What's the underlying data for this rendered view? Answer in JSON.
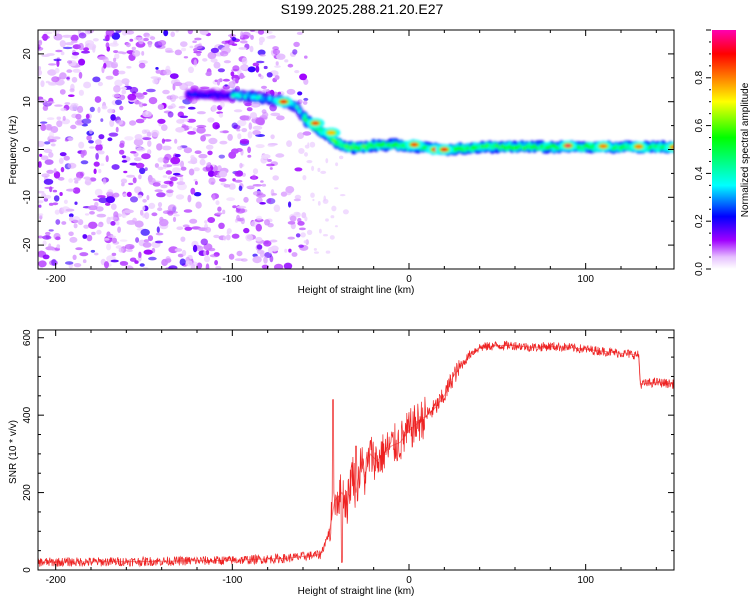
{
  "title": "S199.2025.288.21.20.E27",
  "chart_data": [
    {
      "type": "heatmap",
      "name": "spectrogram",
      "xlabel": "Height of straight line (km)",
      "ylabel": "Frequency (Hz)",
      "xlim": [
        -210,
        150
      ],
      "ylim": [
        -25,
        25
      ],
      "xticks": [
        -200,
        -100,
        0,
        100
      ],
      "yticks": [
        -20,
        -10,
        0,
        10,
        20
      ],
      "colorbar": {
        "label": "Normalized spectral amplitude",
        "range": [
          0,
          1
        ],
        "ticks": [
          "0.0",
          "0.2",
          "0.4",
          "0.6",
          "0.8"
        ],
        "tick_values": [
          0.0,
          0.2,
          0.4,
          0.6,
          0.8
        ],
        "colors": [
          "#ffffff",
          "#e0b0ff",
          "#a000ff",
          "#0000ff",
          "#00ffff",
          "#00ff00",
          "#ffff00",
          "#ff8000",
          "#ff0000",
          "#ff00b0"
        ]
      },
      "noise_region_x": [
        -210,
        -57
      ],
      "ridge": {
        "x": [
          -210,
          -120,
          -90,
          -80,
          -70,
          -64,
          -58,
          -52,
          -46,
          -40,
          -34,
          -28,
          -20,
          -10,
          0,
          20,
          40,
          60,
          80,
          100,
          120,
          150
        ],
        "freq": [
          11.5,
          11.5,
          11.2,
          10.5,
          10,
          9,
          6,
          4.5,
          3,
          1.2,
          0.5,
          0.3,
          0.8,
          1,
          0.8,
          0,
          0.5,
          0.6,
          0.5,
          0.6,
          0.5,
          0.5
        ]
      },
      "hotspots": [
        {
          "x": -71,
          "freq": 10,
          "amp": 0.9
        },
        {
          "x": -53,
          "freq": 5.5,
          "amp": 0.85
        },
        {
          "x": -44,
          "freq": 3.5,
          "amp": 0.75
        },
        {
          "x": 3,
          "freq": 1,
          "amp": 0.85
        },
        {
          "x": 15,
          "freq": 0,
          "amp": 0.9
        },
        {
          "x": 20,
          "freq": 0,
          "amp": 0.9
        },
        {
          "x": 90,
          "freq": 0.8,
          "amp": 0.95
        },
        {
          "x": 110,
          "freq": 0.7,
          "amp": 0.8
        },
        {
          "x": 130,
          "freq": 0.6,
          "amp": 0.8
        },
        {
          "x": 150,
          "freq": 0.5,
          "amp": 0.8
        }
      ]
    },
    {
      "type": "line",
      "name": "snr",
      "xlabel": "Height of straight line (km)",
      "ylabel": "SNR (10 * v/v)",
      "xlim": [
        -210,
        150
      ],
      "ylim": [
        0,
        620
      ],
      "xticks": [
        -200,
        -100,
        0,
        100
      ],
      "yticks": [
        0,
        200,
        400,
        600
      ],
      "color": "#ee2222",
      "series": [
        {
          "name": "SNR",
          "x": [
            -210,
            -150,
            -100,
            -70,
            -50,
            -45,
            -42,
            -38,
            -35,
            -32,
            -30,
            -27,
            -25,
            -22,
            -18,
            -15,
            -10,
            -5,
            0,
            5,
            10,
            15,
            20,
            25,
            30,
            35,
            40,
            50,
            60,
            70,
            80,
            90,
            100,
            110,
            120,
            130,
            131,
            140,
            150
          ],
          "values": [
            20,
            22,
            25,
            30,
            40,
            100,
            180,
            200,
            170,
            260,
            200,
            280,
            240,
            300,
            280,
            300,
            320,
            330,
            360,
            380,
            400,
            420,
            450,
            500,
            530,
            560,
            575,
            580,
            580,
            575,
            578,
            575,
            570,
            565,
            560,
            555,
            480,
            485,
            480
          ]
        }
      ],
      "noise_amplitude": 12,
      "spikes": [
        {
          "x": -43,
          "value": 440
        },
        {
          "x": -38,
          "value": 20
        },
        {
          "x": -30,
          "value": 320
        }
      ]
    }
  ]
}
